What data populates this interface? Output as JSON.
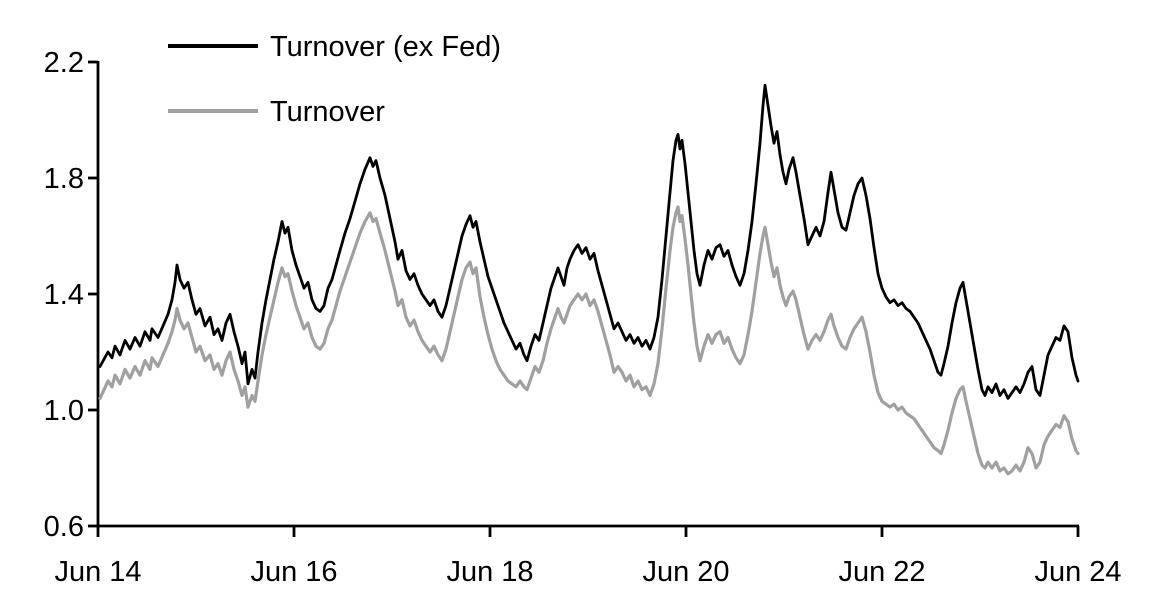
{
  "chart_data": {
    "type": "line",
    "title": "",
    "description_visible_text_only": "Two-series line chart, no title, no gridlines, left and bottom axes only",
    "grid": false,
    "x_axis": {
      "kind": "time",
      "range_years": [
        0,
        10
      ],
      "tick_years": [
        0,
        2,
        4,
        6,
        8,
        10
      ],
      "tick_labels": [
        "Jun 14",
        "Jun 16",
        "Jun 18",
        "Jun 20",
        "Jun 22",
        "Jun 24"
      ]
    },
    "y_axis": {
      "range": [
        0.6,
        2.2
      ],
      "tick_values": [
        0.6,
        1.0,
        1.4,
        1.8,
        2.2
      ],
      "tick_labels": [
        "0.6",
        "1.0",
        "1.4",
        "1.8",
        "2.2"
      ]
    },
    "legend": {
      "position": "top-left-inside",
      "entries": [
        {
          "label": "Turnover (ex Fed)",
          "color": "#000000"
        },
        {
          "label": "Turnover",
          "color": "#a0a0a0"
        }
      ]
    },
    "x_years": [
      0.02,
      0.102,
      0.143,
      0.173,
      0.224,
      0.276,
      0.327,
      0.378,
      0.429,
      0.48,
      0.531,
      0.551,
      0.612,
      0.663,
      0.714,
      0.755,
      0.786,
      0.806,
      0.837,
      0.878,
      0.918,
      0.959,
      1.0,
      1.041,
      1.092,
      1.143,
      1.184,
      1.224,
      1.265,
      1.306,
      1.347,
      1.388,
      1.429,
      1.469,
      1.5,
      1.531,
      1.571,
      1.602,
      1.633,
      1.673,
      1.714,
      1.755,
      1.796,
      1.837,
      1.878,
      1.908,
      1.939,
      1.98,
      2.02,
      2.061,
      2.102,
      2.143,
      2.184,
      2.224,
      2.265,
      2.306,
      2.347,
      2.388,
      2.429,
      2.469,
      2.52,
      2.571,
      2.622,
      2.673,
      2.724,
      2.776,
      2.806,
      2.837,
      2.878,
      2.929,
      2.98,
      3.031,
      3.061,
      3.102,
      3.143,
      3.184,
      3.224,
      3.265,
      3.306,
      3.347,
      3.388,
      3.429,
      3.469,
      3.51,
      3.551,
      3.592,
      3.633,
      3.673,
      3.714,
      3.755,
      3.796,
      3.827,
      3.857,
      3.898,
      3.939,
      3.98,
      4.02,
      4.061,
      4.102,
      4.143,
      4.184,
      4.224,
      4.265,
      4.306,
      4.347,
      4.378,
      4.418,
      4.459,
      4.5,
      4.541,
      4.582,
      4.622,
      4.663,
      4.694,
      4.724,
      4.755,
      4.786,
      4.816,
      4.857,
      4.898,
      4.939,
      4.98,
      5.02,
      5.061,
      5.102,
      5.143,
      5.184,
      5.224,
      5.265,
      5.306,
      5.347,
      5.388,
      5.429,
      5.469,
      5.51,
      5.551,
      5.592,
      5.633,
      5.673,
      5.714,
      5.755,
      5.796,
      5.837,
      5.867,
      5.898,
      5.918,
      5.939,
      5.959,
      5.99,
      6.02,
      6.051,
      6.082,
      6.112,
      6.143,
      6.184,
      6.224,
      6.265,
      6.306,
      6.347,
      6.388,
      6.429,
      6.469,
      6.51,
      6.551,
      6.592,
      6.633,
      6.673,
      6.714,
      6.755,
      6.786,
      6.806,
      6.837,
      6.867,
      6.898,
      6.929,
      6.959,
      6.99,
      7.02,
      7.051,
      7.092,
      7.122,
      7.163,
      7.204,
      7.245,
      7.286,
      7.327,
      7.367,
      7.408,
      7.449,
      7.48,
      7.51,
      7.551,
      7.592,
      7.633,
      7.673,
      7.714,
      7.755,
      7.796,
      7.837,
      7.878,
      7.918,
      7.959,
      8.0,
      8.041,
      8.082,
      8.122,
      8.163,
      8.204,
      8.245,
      8.286,
      8.327,
      8.367,
      8.408,
      8.449,
      8.49,
      8.531,
      8.571,
      8.602,
      8.633,
      8.673,
      8.714,
      8.755,
      8.796,
      8.827,
      8.857,
      8.898,
      8.939,
      8.98,
      9.02,
      9.051,
      9.082,
      9.122,
      9.163,
      9.204,
      9.245,
      9.286,
      9.327,
      9.367,
      9.408,
      9.449,
      9.49,
      9.531,
      9.571,
      9.612,
      9.653,
      9.694,
      9.735,
      9.776,
      9.816,
      9.857,
      9.898,
      9.939,
      9.98,
      10.0
    ],
    "series": [
      {
        "name": "Turnover (ex Fed)",
        "color": "#000000",
        "values": [
          1.15,
          1.2,
          1.18,
          1.22,
          1.19,
          1.24,
          1.21,
          1.25,
          1.22,
          1.27,
          1.24,
          1.28,
          1.25,
          1.29,
          1.33,
          1.38,
          1.44,
          1.5,
          1.45,
          1.42,
          1.44,
          1.38,
          1.33,
          1.35,
          1.29,
          1.32,
          1.26,
          1.28,
          1.24,
          1.3,
          1.33,
          1.27,
          1.22,
          1.16,
          1.2,
          1.09,
          1.14,
          1.11,
          1.2,
          1.3,
          1.38,
          1.45,
          1.52,
          1.58,
          1.65,
          1.61,
          1.63,
          1.55,
          1.5,
          1.46,
          1.42,
          1.44,
          1.38,
          1.35,
          1.34,
          1.36,
          1.42,
          1.45,
          1.5,
          1.55,
          1.61,
          1.66,
          1.72,
          1.78,
          1.83,
          1.87,
          1.84,
          1.86,
          1.8,
          1.74,
          1.66,
          1.58,
          1.52,
          1.55,
          1.48,
          1.45,
          1.47,
          1.43,
          1.4,
          1.38,
          1.36,
          1.38,
          1.34,
          1.32,
          1.36,
          1.42,
          1.48,
          1.54,
          1.6,
          1.64,
          1.67,
          1.63,
          1.65,
          1.58,
          1.52,
          1.46,
          1.42,
          1.38,
          1.34,
          1.3,
          1.27,
          1.24,
          1.21,
          1.23,
          1.19,
          1.17,
          1.22,
          1.26,
          1.24,
          1.3,
          1.36,
          1.42,
          1.46,
          1.49,
          1.46,
          1.43,
          1.49,
          1.52,
          1.55,
          1.57,
          1.54,
          1.56,
          1.52,
          1.54,
          1.48,
          1.43,
          1.38,
          1.33,
          1.28,
          1.3,
          1.27,
          1.24,
          1.26,
          1.23,
          1.25,
          1.22,
          1.24,
          1.21,
          1.25,
          1.32,
          1.45,
          1.6,
          1.75,
          1.86,
          1.93,
          1.95,
          1.9,
          1.93,
          1.85,
          1.75,
          1.65,
          1.55,
          1.47,
          1.43,
          1.5,
          1.55,
          1.52,
          1.56,
          1.57,
          1.53,
          1.55,
          1.5,
          1.46,
          1.43,
          1.47,
          1.55,
          1.65,
          1.78,
          1.92,
          2.05,
          2.12,
          2.05,
          1.98,
          1.92,
          1.96,
          1.88,
          1.82,
          1.78,
          1.83,
          1.87,
          1.82,
          1.74,
          1.66,
          1.57,
          1.6,
          1.63,
          1.6,
          1.65,
          1.75,
          1.82,
          1.76,
          1.68,
          1.63,
          1.62,
          1.68,
          1.74,
          1.78,
          1.8,
          1.74,
          1.66,
          1.56,
          1.47,
          1.42,
          1.39,
          1.37,
          1.38,
          1.36,
          1.37,
          1.35,
          1.34,
          1.32,
          1.3,
          1.27,
          1.24,
          1.21,
          1.17,
          1.13,
          1.12,
          1.16,
          1.22,
          1.3,
          1.37,
          1.42,
          1.44,
          1.38,
          1.3,
          1.22,
          1.14,
          1.07,
          1.05,
          1.08,
          1.06,
          1.09,
          1.05,
          1.07,
          1.04,
          1.06,
          1.08,
          1.06,
          1.09,
          1.13,
          1.15,
          1.07,
          1.05,
          1.12,
          1.19,
          1.22,
          1.25,
          1.24,
          1.29,
          1.27,
          1.18,
          1.12,
          1.1
        ]
      },
      {
        "name": "Turnover",
        "color": "#a0a0a0",
        "values": [
          1.04,
          1.1,
          1.08,
          1.12,
          1.09,
          1.14,
          1.11,
          1.15,
          1.12,
          1.17,
          1.14,
          1.18,
          1.15,
          1.19,
          1.23,
          1.27,
          1.31,
          1.35,
          1.31,
          1.28,
          1.3,
          1.25,
          1.2,
          1.22,
          1.17,
          1.19,
          1.14,
          1.16,
          1.12,
          1.17,
          1.2,
          1.14,
          1.1,
          1.05,
          1.08,
          1.01,
          1.05,
          1.03,
          1.1,
          1.19,
          1.26,
          1.32,
          1.38,
          1.44,
          1.49,
          1.46,
          1.47,
          1.41,
          1.36,
          1.32,
          1.28,
          1.3,
          1.25,
          1.22,
          1.21,
          1.23,
          1.28,
          1.31,
          1.36,
          1.41,
          1.46,
          1.51,
          1.56,
          1.61,
          1.65,
          1.68,
          1.65,
          1.66,
          1.61,
          1.55,
          1.48,
          1.41,
          1.36,
          1.38,
          1.32,
          1.29,
          1.31,
          1.27,
          1.24,
          1.22,
          1.2,
          1.22,
          1.19,
          1.17,
          1.21,
          1.27,
          1.33,
          1.39,
          1.45,
          1.49,
          1.51,
          1.47,
          1.49,
          1.39,
          1.32,
          1.26,
          1.21,
          1.17,
          1.14,
          1.12,
          1.1,
          1.09,
          1.08,
          1.1,
          1.08,
          1.07,
          1.11,
          1.15,
          1.13,
          1.17,
          1.23,
          1.28,
          1.32,
          1.35,
          1.32,
          1.3,
          1.33,
          1.36,
          1.38,
          1.4,
          1.38,
          1.4,
          1.36,
          1.38,
          1.34,
          1.29,
          1.24,
          1.19,
          1.13,
          1.15,
          1.13,
          1.1,
          1.12,
          1.08,
          1.1,
          1.07,
          1.08,
          1.05,
          1.09,
          1.16,
          1.28,
          1.42,
          1.55,
          1.63,
          1.68,
          1.7,
          1.65,
          1.67,
          1.59,
          1.5,
          1.4,
          1.3,
          1.22,
          1.17,
          1.22,
          1.26,
          1.23,
          1.26,
          1.27,
          1.23,
          1.25,
          1.21,
          1.18,
          1.16,
          1.19,
          1.26,
          1.34,
          1.44,
          1.54,
          1.6,
          1.63,
          1.57,
          1.51,
          1.46,
          1.49,
          1.43,
          1.39,
          1.36,
          1.39,
          1.41,
          1.38,
          1.32,
          1.26,
          1.21,
          1.24,
          1.26,
          1.24,
          1.27,
          1.31,
          1.33,
          1.29,
          1.25,
          1.22,
          1.21,
          1.25,
          1.28,
          1.3,
          1.32,
          1.27,
          1.2,
          1.12,
          1.06,
          1.03,
          1.02,
          1.01,
          1.02,
          1.0,
          1.01,
          0.99,
          0.98,
          0.97,
          0.95,
          0.93,
          0.91,
          0.89,
          0.87,
          0.86,
          0.85,
          0.88,
          0.93,
          0.99,
          1.04,
          1.07,
          1.08,
          1.03,
          0.97,
          0.91,
          0.85,
          0.81,
          0.8,
          0.82,
          0.8,
          0.82,
          0.79,
          0.8,
          0.78,
          0.79,
          0.81,
          0.79,
          0.82,
          0.87,
          0.85,
          0.8,
          0.82,
          0.88,
          0.91,
          0.93,
          0.95,
          0.94,
          0.98,
          0.96,
          0.9,
          0.86,
          0.85
        ]
      }
    ]
  },
  "colors": {
    "background": "#ffffff",
    "axis": "#000000",
    "ex_fed_line": "#000000",
    "turnover_line": "#a0a0a0"
  }
}
